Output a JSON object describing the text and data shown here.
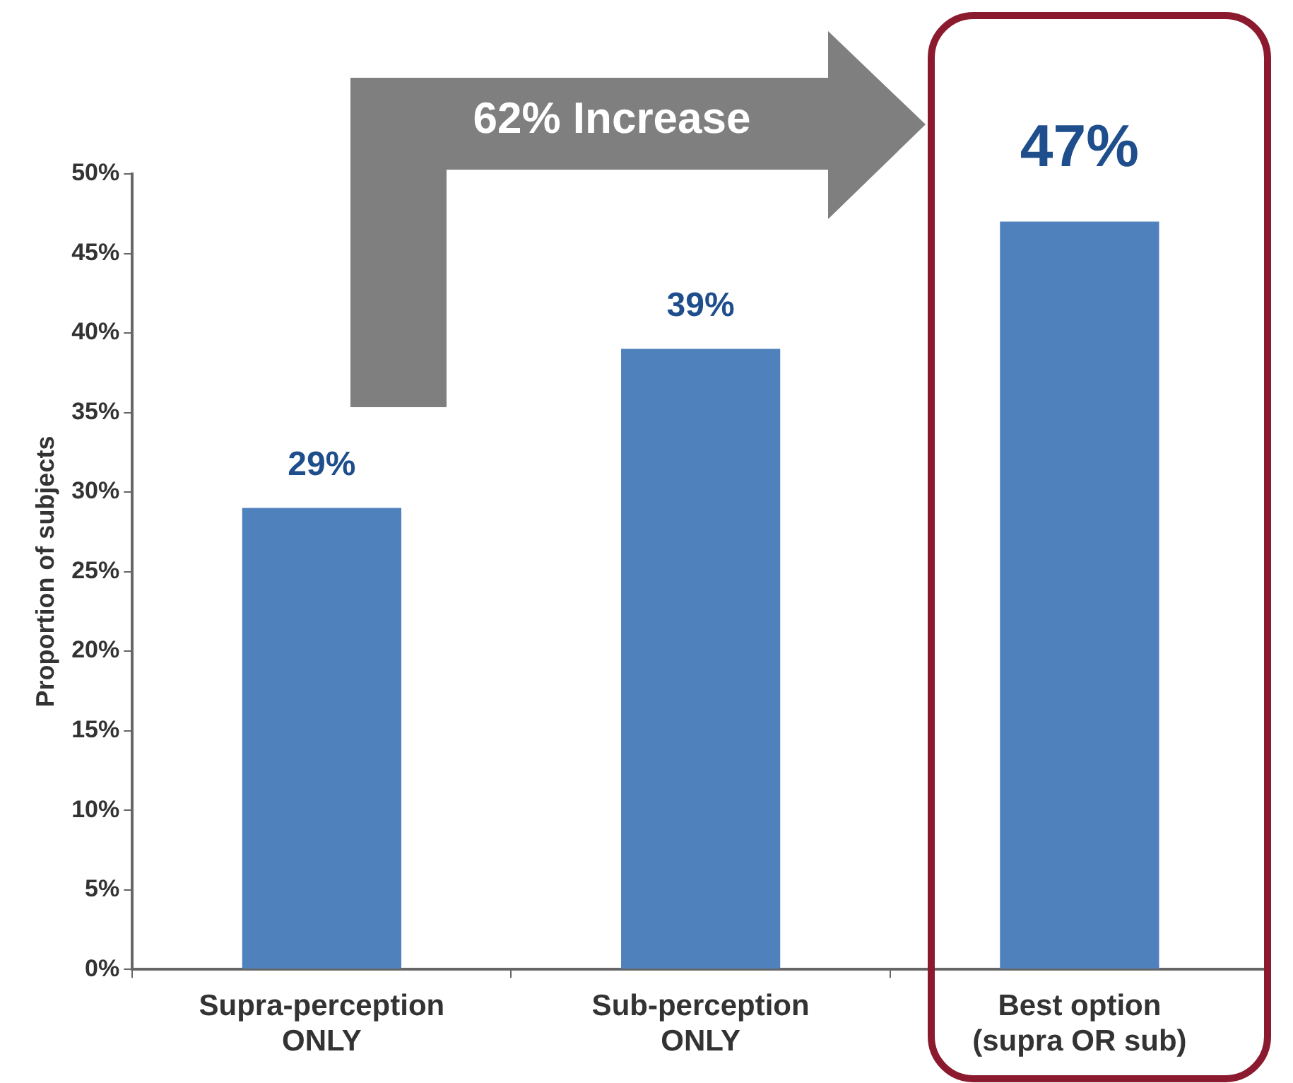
{
  "chart_data": {
    "type": "bar",
    "ylabel": "Proportion of subjects",
    "categories": [
      "Supra-perception ONLY",
      "Sub-perception ONLY",
      "Best option (supra OR sub)"
    ],
    "values": [
      29,
      39,
      47
    ],
    "color": "#4f81bd",
    "value_labels": [
      "29%",
      "39%",
      "47%"
    ],
    "ylim": [
      0,
      50
    ],
    "yticks": [
      {
        "value": 0,
        "label": "0%"
      },
      {
        "value": 5,
        "label": "5%"
      },
      {
        "value": 10,
        "label": "10%"
      },
      {
        "value": 15,
        "label": "15%"
      },
      {
        "value": 20,
        "label": "20%"
      },
      {
        "value": 25,
        "label": "25%"
      },
      {
        "value": 30,
        "label": "30%"
      },
      {
        "value": 35,
        "label": "35%"
      },
      {
        "value": 40,
        "label": "40%"
      },
      {
        "value": 45,
        "label": "45%"
      },
      {
        "value": 50,
        "label": "50%"
      }
    ],
    "annotations": [
      "62% Increase"
    ]
  }
}
